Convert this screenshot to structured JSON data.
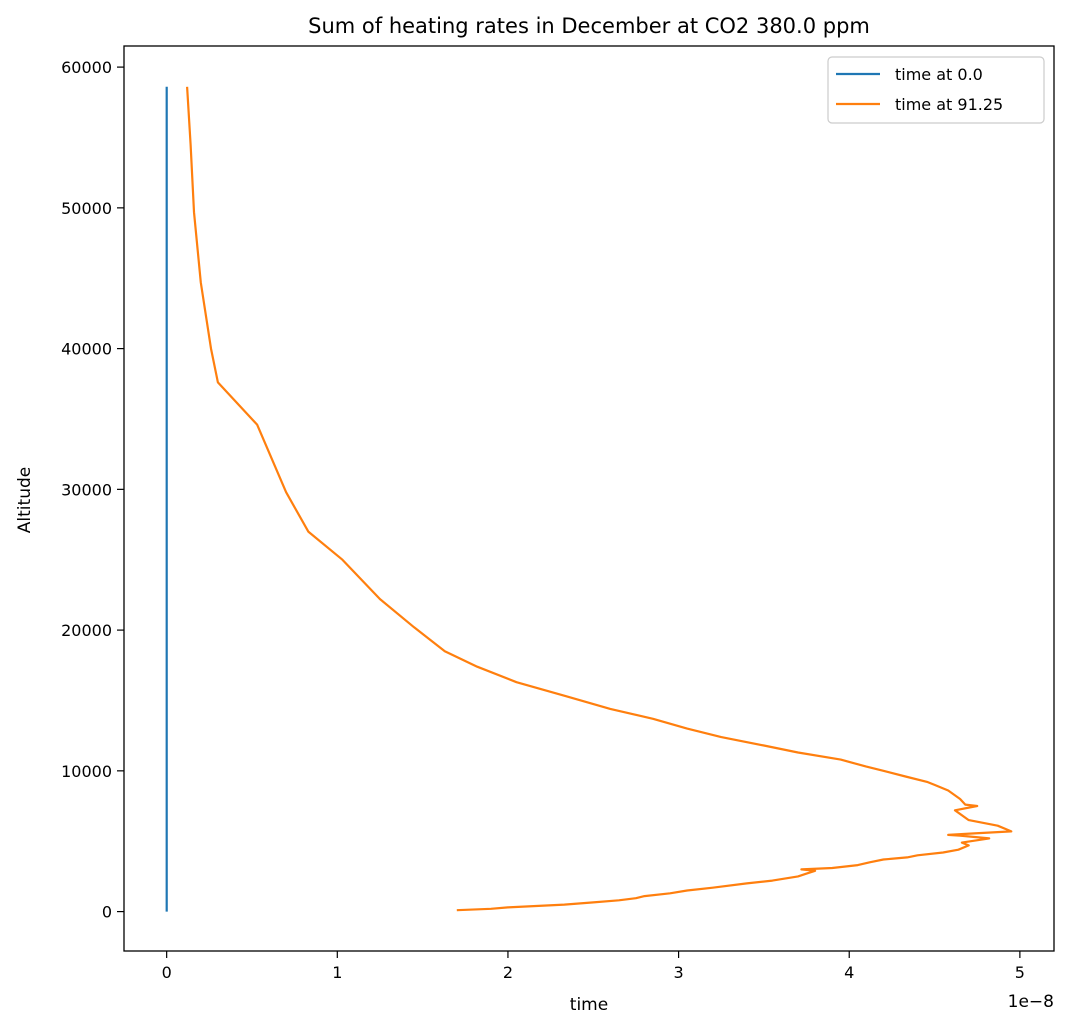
{
  "chart_data": {
    "type": "line",
    "title": "Sum of heating rates in December at CO2 380.0 ppm",
    "xlabel": "time",
    "ylabel": "Altitude",
    "x_offset_label": "1e−8",
    "xlim": [
      -0.025,
      0.52
    ],
    "ylim": [
      -2800,
      61500
    ],
    "xticks": [
      0,
      1,
      2,
      3,
      4,
      5
    ],
    "xtick_labels": [
      "0",
      "1",
      "2",
      "3",
      "4",
      "5"
    ],
    "yticks": [
      0,
      10000,
      20000,
      30000,
      40000,
      50000,
      60000
    ],
    "ytick_labels": [
      "0",
      "10000",
      "20000",
      "30000",
      "40000",
      "50000",
      "60000"
    ],
    "grid": false,
    "legend_position": "top-right",
    "series": [
      {
        "name": "time at 0.0",
        "color": "#1f77b4",
        "points": [
          [
            0.0,
            0
          ],
          [
            0.0,
            58600
          ]
        ]
      },
      {
        "name": "time at 91.25",
        "color": "#ff7f0e",
        "points": [
          [
            0.17,
            100
          ],
          [
            0.19,
            200
          ],
          [
            0.2,
            300
          ],
          [
            0.233,
            500
          ],
          [
            0.25,
            650
          ],
          [
            0.265,
            800
          ],
          [
            0.275,
            950
          ],
          [
            0.28,
            1100
          ],
          [
            0.295,
            1300
          ],
          [
            0.305,
            1500
          ],
          [
            0.32,
            1700
          ],
          [
            0.34,
            2000
          ],
          [
            0.355,
            2200
          ],
          [
            0.37,
            2500
          ],
          [
            0.375,
            2700
          ],
          [
            0.38,
            2900
          ],
          [
            0.372,
            3000
          ],
          [
            0.39,
            3100
          ],
          [
            0.405,
            3300
          ],
          [
            0.412,
            3500
          ],
          [
            0.42,
            3700
          ],
          [
            0.434,
            3850
          ],
          [
            0.44,
            4000
          ],
          [
            0.455,
            4200
          ],
          [
            0.464,
            4400
          ],
          [
            0.47,
            4700
          ],
          [
            0.466,
            4900
          ],
          [
            0.482,
            5200
          ],
          [
            0.465,
            5400
          ],
          [
            0.458,
            5450
          ],
          [
            0.472,
            5550
          ],
          [
            0.495,
            5700
          ],
          [
            0.487,
            6100
          ],
          [
            0.47,
            6500
          ],
          [
            0.462,
            7200
          ],
          [
            0.475,
            7500
          ],
          [
            0.468,
            7600
          ],
          [
            0.465,
            8000
          ],
          [
            0.458,
            8600
          ],
          [
            0.45,
            9000
          ],
          [
            0.446,
            9200
          ],
          [
            0.433,
            9600
          ],
          [
            0.42,
            10000
          ],
          [
            0.41,
            10300
          ],
          [
            0.395,
            10800
          ],
          [
            0.37,
            11300
          ],
          [
            0.35,
            11800
          ],
          [
            0.325,
            12400
          ],
          [
            0.305,
            13000
          ],
          [
            0.285,
            13700
          ],
          [
            0.26,
            14400
          ],
          [
            0.234,
            15300
          ],
          [
            0.205,
            16300
          ],
          [
            0.182,
            17400
          ],
          [
            0.163,
            18500
          ],
          [
            0.145,
            20200
          ],
          [
            0.125,
            22200
          ],
          [
            0.103,
            25000
          ],
          [
            0.083,
            27000
          ],
          [
            0.07,
            29800
          ],
          [
            0.053,
            34600
          ],
          [
            0.03,
            37600
          ],
          [
            0.026,
            40000
          ],
          [
            0.02,
            44700
          ],
          [
            0.016,
            49700
          ],
          [
            0.014,
            54500
          ],
          [
            0.012,
            58600
          ]
        ]
      }
    ]
  }
}
